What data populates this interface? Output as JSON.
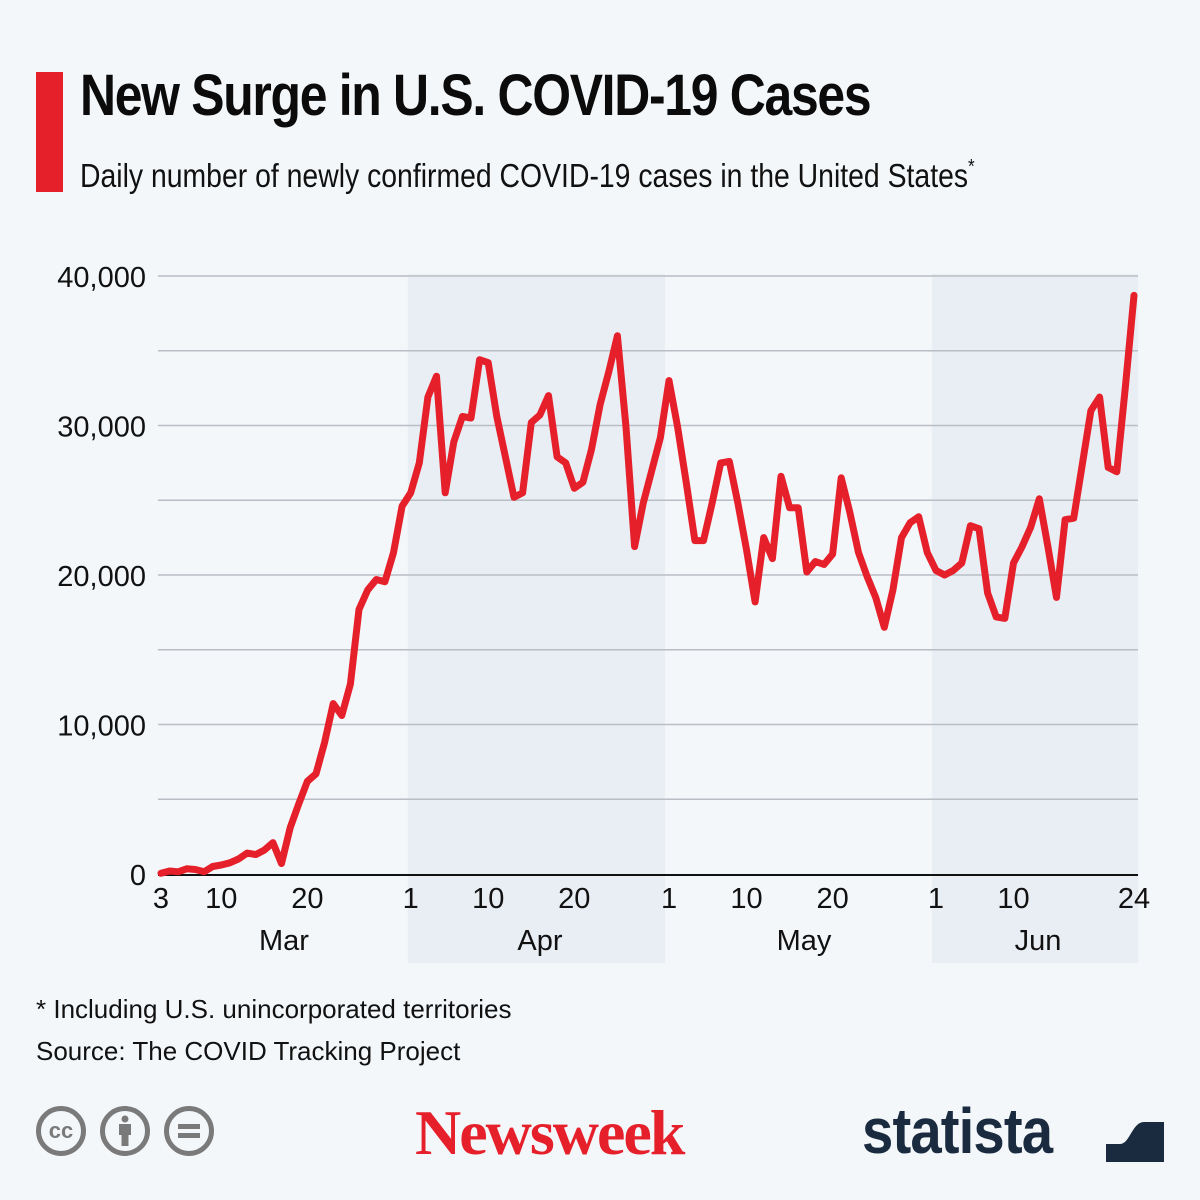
{
  "header": {
    "title": "New Surge in U.S. COVID-19 Cases",
    "subtitle": "Daily number of newly confirmed COVID-19 cases in the United States",
    "subtitle_marker": "*",
    "accent_color": "#E5202A"
  },
  "chart_data": {
    "type": "line",
    "title": "New Surge in U.S. COVID-19 Cases",
    "subtitle": "Daily number of newly confirmed COVID-19 cases in the United States*",
    "xlabel": "",
    "ylabel": "",
    "ylim": [
      0,
      40000
    ],
    "yticks": [
      0,
      10000,
      20000,
      30000,
      40000
    ],
    "ytick_labels": [
      "0",
      "10,000",
      "20,000",
      "30,000",
      "40,000"
    ],
    "minor_gridlines": [
      5000,
      15000,
      25000,
      35000
    ],
    "grid": true,
    "x_start": "2020-03-03",
    "x_end": "2020-06-24",
    "xticks": [
      {
        "day": 0,
        "label": "3"
      },
      {
        "day": 7,
        "label": "10"
      },
      {
        "day": 17,
        "label": "20"
      },
      {
        "day": 29,
        "label": "1"
      },
      {
        "day": 38,
        "label": "10"
      },
      {
        "day": 48,
        "label": "20"
      },
      {
        "day": 59,
        "label": "1"
      },
      {
        "day": 68,
        "label": "10"
      },
      {
        "day": 78,
        "label": "20"
      },
      {
        "day": 90,
        "label": "1"
      },
      {
        "day": 99,
        "label": "10"
      },
      {
        "day": 113,
        "label": "24"
      }
    ],
    "months": [
      {
        "label": "Mar",
        "start": 0,
        "end": 29,
        "shaded": false
      },
      {
        "label": "Apr",
        "start": 29,
        "end": 59,
        "shaded": true
      },
      {
        "label": "May",
        "start": 59,
        "end": 90,
        "shaded": false
      },
      {
        "label": "Jun",
        "start": 90,
        "end": 113,
        "shaded": true
      }
    ],
    "series": [
      {
        "name": "Daily new confirmed cases",
        "color": "#E5202A",
        "values": [
          50,
          200,
          150,
          350,
          300,
          150,
          500,
          600,
          750,
          1000,
          1400,
          1300,
          1600,
          2100,
          700,
          3100,
          4700,
          6200,
          6700,
          8800,
          11400,
          10600,
          12700,
          17700,
          19000,
          19700,
          19550,
          21500,
          24600,
          25500,
          27500,
          31900,
          33300,
          25500,
          28900,
          30600,
          30500,
          34400,
          34200,
          30600,
          27900,
          25200,
          25500,
          30200,
          30700,
          32000,
          27900,
          27500,
          25800,
          26200,
          28400,
          31400,
          33600,
          36000,
          29900,
          21900,
          24800,
          27000,
          29200,
          33000,
          29900,
          26200,
          22300,
          22300,
          24800,
          27500,
          27600,
          24800,
          21700,
          18200,
          22500,
          21100,
          26600,
          24500,
          24500,
          20200,
          20900,
          20700,
          21400,
          26500,
          24200,
          21500,
          19900,
          18500,
          16500,
          19000,
          22500,
          23500,
          23900,
          21500,
          20300,
          20000,
          20300,
          20800,
          23300,
          23100,
          18800,
          17200,
          17100,
          20800,
          21900,
          23200,
          25100,
          21900,
          18500,
          23700,
          23800,
          27400,
          31000,
          31900,
          27200,
          26900,
          32600,
          38700
        ]
      }
    ],
    "background_color": "#F4F7FA",
    "shade_color": "#E9EEF4"
  },
  "footer": {
    "note": "* Including U.S. unincorporated territories",
    "source": "Source: The COVID Tracking Project",
    "license_icons": [
      {
        "name": "cc-icon",
        "glyph": "cc"
      },
      {
        "name": "attribution-icon",
        "glyph": ""
      },
      {
        "name": "no-derivatives-icon",
        "glyph": "="
      }
    ],
    "brand_newsweek": "Newsweek",
    "brand_statista": "statista",
    "brand_colors": {
      "newsweek": "#E5202A",
      "statista": "#1A2B3F"
    }
  }
}
